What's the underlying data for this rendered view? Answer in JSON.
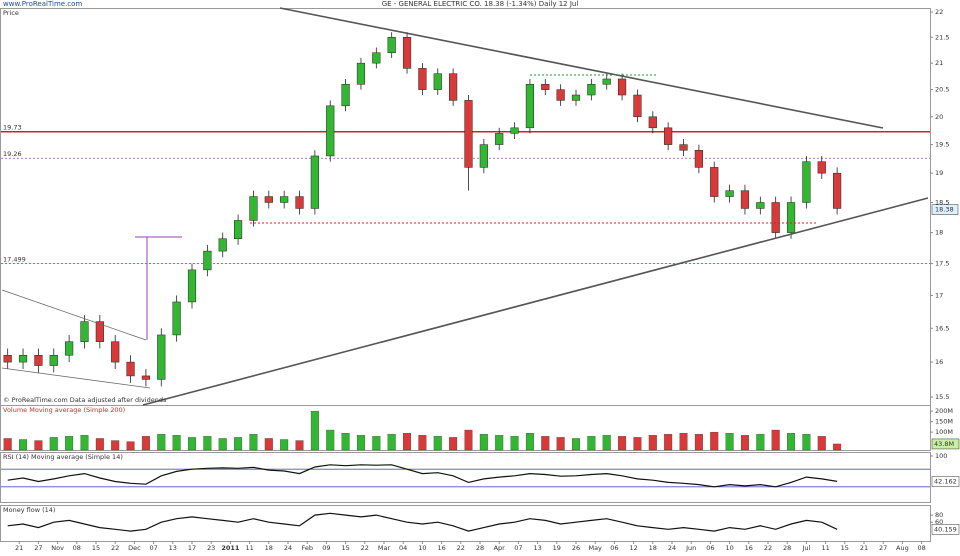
{
  "chart_data": {
    "type": "candlestick",
    "title": "GE - GENERAL ELECTRIC CO.    18.38 (-1.34%)    Daily  12 Jul",
    "site": "www.ProRealTime.com",
    "price_label": "Price",
    "footnote": "© ProRealTime.com  Data adjusted after dividends",
    "log_scale": true,
    "last": 18.38,
    "up_color": "#33b733",
    "down_color": "#d83a3a",
    "xlim": [
      -1,
      48
    ],
    "xticks": [
      "21",
      "27",
      "Nov",
      "08",
      "15",
      "22",
      "Dec",
      "07",
      "13",
      "17",
      "23",
      "2011",
      "11",
      "18",
      "24",
      "Feb",
      "09",
      "15",
      "22",
      "Mar",
      "04",
      "10",
      "16",
      "22",
      "28",
      "Apr",
      "07",
      "13",
      "19",
      "26",
      "May",
      "06",
      "12",
      "18",
      "24",
      "Jun",
      "06",
      "10",
      "16",
      "22",
      "28",
      "Jul",
      "11",
      "15",
      "21",
      "27",
      "Aug",
      "08"
    ],
    "ylim": [
      15.5,
      22
    ],
    "yticks": [
      15.5,
      16,
      16.5,
      17,
      17.5,
      18,
      18.5,
      19,
      19.5,
      20,
      20.5,
      21,
      21.5,
      22
    ],
    "levels": [
      {
        "value": 19.73,
        "color": "#d62020",
        "dashed": false
      },
      {
        "value": 19.26,
        "color": "#9a40c0",
        "dashed": true
      },
      {
        "value": 17.499,
        "color": "#d62020",
        "dashed": true
      }
    ],
    "x": [
      -0.6,
      0.2,
      1,
      1.8,
      2.6,
      3.4,
      4.2,
      5,
      5.8,
      6.6,
      7.4,
      8.2,
      9,
      9.8,
      10.6,
      11.4,
      12.2,
      13,
      13.8,
      14.6,
      15.4,
      16.2,
      17,
      17.8,
      18.6,
      19.4,
      20.2,
      21,
      21.8,
      22.6,
      23.4,
      24.2,
      25,
      25.8,
      26.6,
      27.4,
      28.2,
      29,
      29.8,
      30.6,
      31.4,
      32.2,
      33,
      33.8,
      34.6,
      35.4,
      36.2,
      37,
      37.8,
      38.6,
      39.4,
      40.2,
      41,
      41.8,
      42.6
    ],
    "open": [
      16.1,
      16.0,
      16.1,
      15.95,
      16.1,
      16.3,
      16.6,
      16.3,
      16.0,
      15.8,
      15.75,
      16.4,
      16.9,
      17.4,
      17.7,
      17.9,
      18.2,
      18.6,
      18.5,
      18.6,
      18.4,
      19.3,
      20.2,
      20.6,
      21.0,
      21.2,
      21.5,
      20.9,
      20.5,
      20.8,
      20.3,
      19.1,
      19.5,
      19.7,
      19.8,
      20.6,
      20.5,
      20.3,
      20.4,
      20.6,
      20.7,
      20.4,
      20.0,
      19.8,
      19.5,
      19.4,
      19.1,
      18.6,
      18.7,
      18.4,
      18.5,
      18.0,
      18.5,
      19.2,
      19.0
    ],
    "high": [
      16.2,
      16.2,
      16.2,
      16.2,
      16.4,
      16.7,
      16.7,
      16.4,
      16.1,
      15.9,
      16.5,
      17.0,
      17.5,
      17.8,
      18.0,
      18.3,
      18.7,
      18.7,
      18.7,
      18.7,
      19.4,
      20.3,
      20.7,
      21.1,
      21.3,
      21.6,
      21.6,
      21.0,
      20.9,
      20.9,
      20.4,
      19.6,
      19.8,
      19.9,
      20.7,
      20.7,
      20.6,
      20.5,
      20.7,
      20.8,
      20.8,
      20.5,
      20.1,
      19.9,
      19.6,
      19.5,
      19.2,
      18.8,
      18.8,
      18.6,
      18.6,
      18.6,
      19.3,
      19.3,
      19.1
    ],
    "low": [
      15.9,
      15.9,
      15.85,
      15.85,
      16.0,
      16.2,
      16.2,
      15.9,
      15.7,
      15.65,
      15.65,
      16.3,
      16.8,
      17.3,
      17.6,
      17.8,
      18.1,
      18.4,
      18.4,
      18.3,
      18.3,
      19.2,
      20.1,
      20.5,
      20.9,
      21.1,
      20.8,
      20.4,
      20.4,
      20.2,
      18.7,
      19.0,
      19.4,
      19.6,
      19.7,
      20.4,
      20.2,
      20.2,
      20.3,
      20.5,
      20.3,
      19.9,
      19.7,
      19.4,
      19.3,
      19.0,
      18.5,
      18.5,
      18.3,
      18.3,
      17.9,
      17.9,
      18.4,
      18.9,
      18.3
    ],
    "close": [
      16.0,
      16.1,
      15.95,
      16.1,
      16.3,
      16.6,
      16.3,
      16.0,
      15.8,
      15.75,
      16.4,
      16.9,
      17.4,
      17.7,
      17.9,
      18.2,
      18.6,
      18.5,
      18.6,
      18.4,
      19.3,
      20.2,
      20.6,
      21.0,
      21.2,
      21.5,
      20.9,
      20.5,
      20.8,
      20.3,
      19.1,
      19.5,
      19.7,
      19.8,
      20.6,
      20.5,
      20.3,
      20.4,
      20.6,
      20.7,
      20.4,
      20.0,
      19.8,
      19.5,
      19.4,
      19.1,
      18.6,
      18.7,
      18.4,
      18.5,
      18.0,
      18.5,
      19.2,
      19.0,
      18.4
    ],
    "volume": {
      "title": "Volume  Moving average (Simple 200)",
      "ylim": [
        15,
        210
      ],
      "yticks": [
        {
          "value": 100,
          "label": "100M"
        },
        {
          "value": 150,
          "label": "150M"
        },
        {
          "value": 200,
          "label": "200M"
        }
      ],
      "last_label": "43.8M",
      "values": [
        70,
        65,
        60,
        75,
        80,
        85,
        70,
        60,
        55,
        80,
        90,
        85,
        75,
        80,
        70,
        75,
        90,
        70,
        65,
        60,
        200,
        110,
        95,
        85,
        80,
        90,
        95,
        85,
        80,
        75,
        110,
        90,
        85,
        80,
        95,
        80,
        75,
        70,
        80,
        85,
        80,
        75,
        85,
        90,
        95,
        90,
        100,
        95,
        85,
        90,
        110,
        95,
        90,
        80,
        43.8
      ]
    },
    "rsi": {
      "title": "RSI (14)    Moving average (Simple 14)",
      "ylim": [
        0,
        100
      ],
      "yticks": [
        100
      ],
      "levels": [
        70,
        30
      ],
      "color": "#111",
      "values": [
        45,
        50,
        42,
        48,
        55,
        60,
        50,
        42,
        38,
        36,
        55,
        65,
        70,
        72,
        73,
        72,
        74,
        68,
        66,
        60,
        75,
        80,
        78,
        80,
        79,
        80,
        70,
        60,
        62,
        55,
        40,
        48,
        52,
        55,
        60,
        58,
        54,
        55,
        58,
        60,
        55,
        48,
        45,
        40,
        38,
        35,
        30,
        35,
        32,
        35,
        30,
        40,
        52,
        48,
        42.162
      ]
    },
    "mfi": {
      "title": "Money flow (14)",
      "ylim": [
        10,
        100
      ],
      "yticks": [
        60,
        80
      ],
      "color": "#111",
      "values": [
        50,
        55,
        45,
        60,
        65,
        55,
        45,
        40,
        35,
        40,
        60,
        70,
        75,
        70,
        65,
        60,
        70,
        60,
        55,
        50,
        80,
        85,
        80,
        75,
        80,
        70,
        60,
        55,
        60,
        50,
        35,
        45,
        55,
        60,
        70,
        65,
        55,
        60,
        65,
        70,
        60,
        50,
        45,
        40,
        45,
        40,
        35,
        45,
        40,
        50,
        40,
        55,
        65,
        60,
        40.159
      ]
    }
  }
}
